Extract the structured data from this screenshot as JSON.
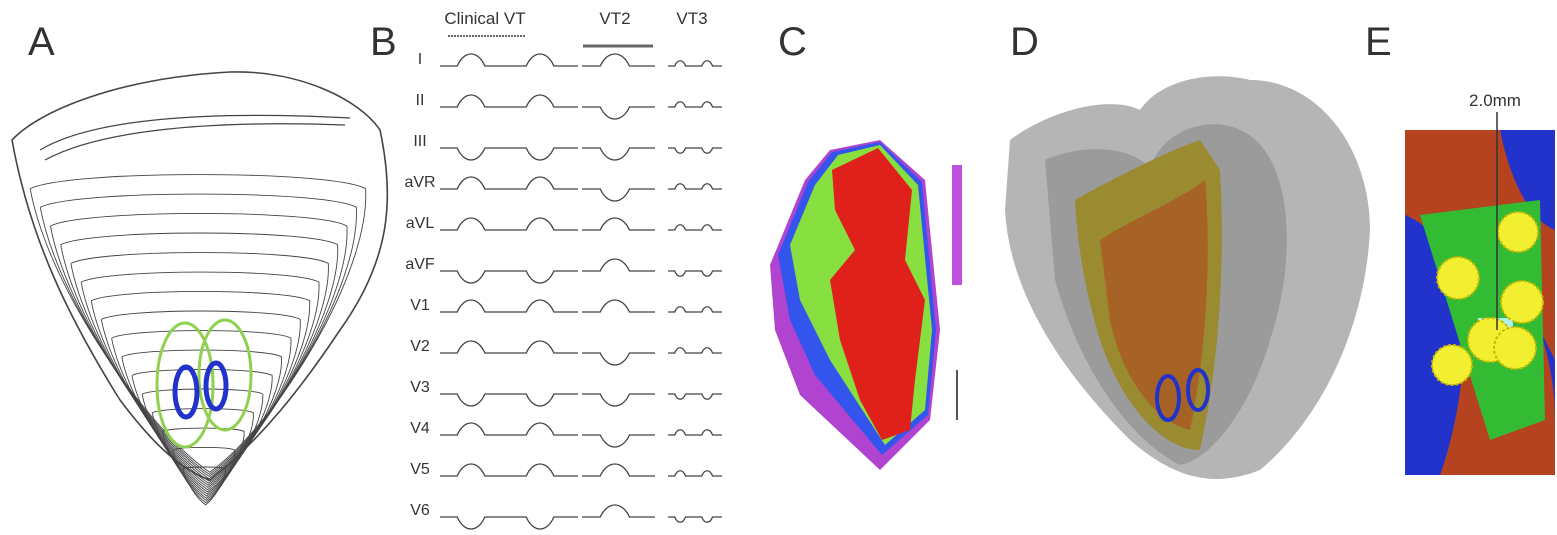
{
  "panels": [
    {
      "label": "A"
    },
    {
      "label": "B",
      "columns": [
        "Clinical VT",
        "VT2",
        "VT3"
      ],
      "leads": [
        "I",
        "II",
        "III",
        "aVR",
        "aVL",
        "aVF",
        "V1",
        "V2",
        "V3",
        "V4",
        "V5",
        "V6"
      ]
    },
    {
      "label": "C"
    },
    {
      "label": "D"
    },
    {
      "label": "E",
      "scale_label": "2.0mm"
    }
  ]
}
